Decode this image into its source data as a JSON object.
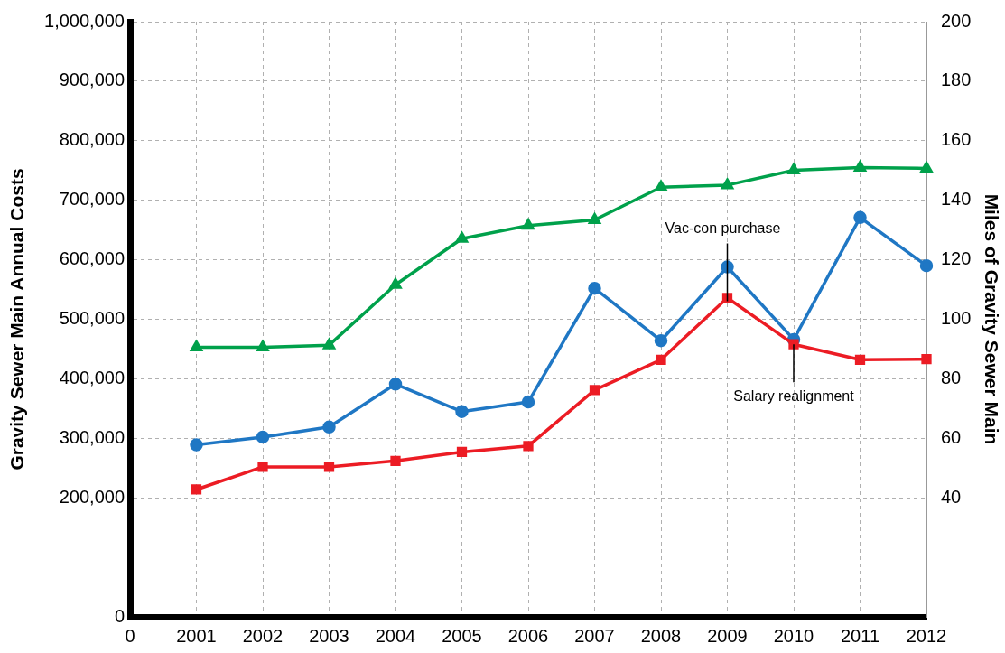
{
  "chart_data": {
    "type": "line",
    "xlabel": null,
    "ylabel": "Gravity Sewer Main Annual Costs",
    "y2label": "Miles of Gravity Sewer Main",
    "categories": [
      "0",
      "2001",
      "2002",
      "2003",
      "2004",
      "2005",
      "2006",
      "2007",
      "2008",
      "2009",
      "2010",
      "2011",
      "2012"
    ],
    "series": [
      {
        "color": "#1f77c4",
        "marker": "circle",
        "values": [
          null,
          289000,
          302000,
          319000,
          391000,
          345000,
          361000,
          552000,
          464000,
          588000,
          466000,
          671000,
          590000
        ]
      },
      {
        "color": "#ec1c24",
        "marker": "square",
        "values": [
          null,
          214000,
          252000,
          252000,
          262000,
          277000,
          287000,
          381000,
          432000,
          536000,
          458000,
          432000,
          433000
        ]
      },
      {
        "color": "#00a14b",
        "marker": "triangle",
        "axis": "y2",
        "values": [
          null,
          90.6,
          90.6,
          91.3,
          111.6,
          127.1,
          131.5,
          133.4,
          144.4,
          145.1,
          150.1,
          151.0,
          150.7
        ]
      }
    ],
    "ylim": [
      0,
      1000000
    ],
    "yticks": [
      {
        "value": 0,
        "label": "0"
      },
      {
        "value": 200000,
        "label": "200,000"
      },
      {
        "value": 300000,
        "label": "300,000"
      },
      {
        "value": 400000,
        "label": "400,000"
      },
      {
        "value": 500000,
        "label": "500,000"
      },
      {
        "value": 600000,
        "label": "600,000"
      },
      {
        "value": 700000,
        "label": "700,000"
      },
      {
        "value": 800000,
        "label": "800,000"
      },
      {
        "value": 900000,
        "label": "900,000"
      },
      {
        "value": 1000000,
        "label": "1,000,000"
      }
    ],
    "y2lim": [
      0,
      200
    ],
    "y2ticks": [
      40,
      60,
      80,
      100,
      120,
      140,
      160,
      180,
      200
    ],
    "grid": true,
    "legend": false,
    "annotations": [
      {
        "text": "Vac-con purchase",
        "x": "2009",
        "y": 588000
      },
      {
        "text": "Salary realignment",
        "x": "2010",
        "y": 458000
      }
    ]
  }
}
